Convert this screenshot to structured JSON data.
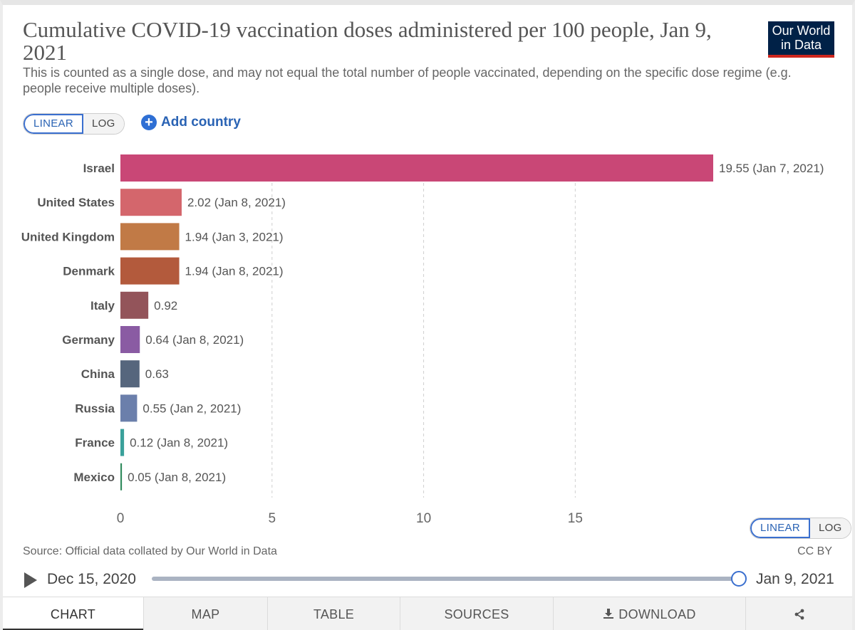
{
  "title": "Cumulative COVID-19 vaccination doses administered per 100 people, Jan 9, 2021",
  "subtitle": "This is counted as a single dose, and may not equal the total number of people vaccinated, depending on the specific dose regime (e.g. people receive multiple doses).",
  "logo": {
    "line1": "Our World",
    "line2": "in Data"
  },
  "scale": {
    "linear": "LINEAR",
    "log": "LOG",
    "selected": "linear"
  },
  "add_country": "Add country",
  "source": "Source: Official data collated by Our World in Data",
  "license": "CC BY",
  "timeline": {
    "start": "Dec 15, 2020",
    "end": "Jan 9, 2021",
    "position": 1.0
  },
  "tabs": {
    "chart": "CHART",
    "map": "MAP",
    "table": "TABLE",
    "sources": "SOURCES",
    "download": "DOWNLOAD"
  },
  "colors": {
    "accent": "#3a6fcf",
    "logo_bg": "#002147",
    "logo_stripe": "#ce261e"
  },
  "chart_data": {
    "type": "bar",
    "orientation": "horizontal",
    "categories": [
      "Israel",
      "United States",
      "United Kingdom",
      "Denmark",
      "Italy",
      "Germany",
      "China",
      "Russia",
      "France",
      "Mexico"
    ],
    "values": [
      19.55,
      2.02,
      1.94,
      1.94,
      0.92,
      0.64,
      0.63,
      0.55,
      0.12,
      0.05
    ],
    "labels": [
      "19.55 (Jan 7, 2021)",
      "2.02 (Jan 8, 2021)",
      "1.94 (Jan 3, 2021)",
      "1.94 (Jan 8, 2021)",
      "0.92",
      "0.64 (Jan 8, 2021)",
      "0.63",
      "0.55 (Jan 2, 2021)",
      "0.12 (Jan 8, 2021)",
      "0.05 (Jan 8, 2021)"
    ],
    "colors": [
      "#c94776",
      "#d4666c",
      "#c17a46",
      "#b35a3c",
      "#93545a",
      "#8a5ba3",
      "#56667d",
      "#6b7fab",
      "#3aa19b",
      "#2f8a5c"
    ],
    "xticks": [
      0,
      5,
      10,
      15
    ],
    "xlim": [
      0,
      19.55
    ],
    "grid": true
  }
}
